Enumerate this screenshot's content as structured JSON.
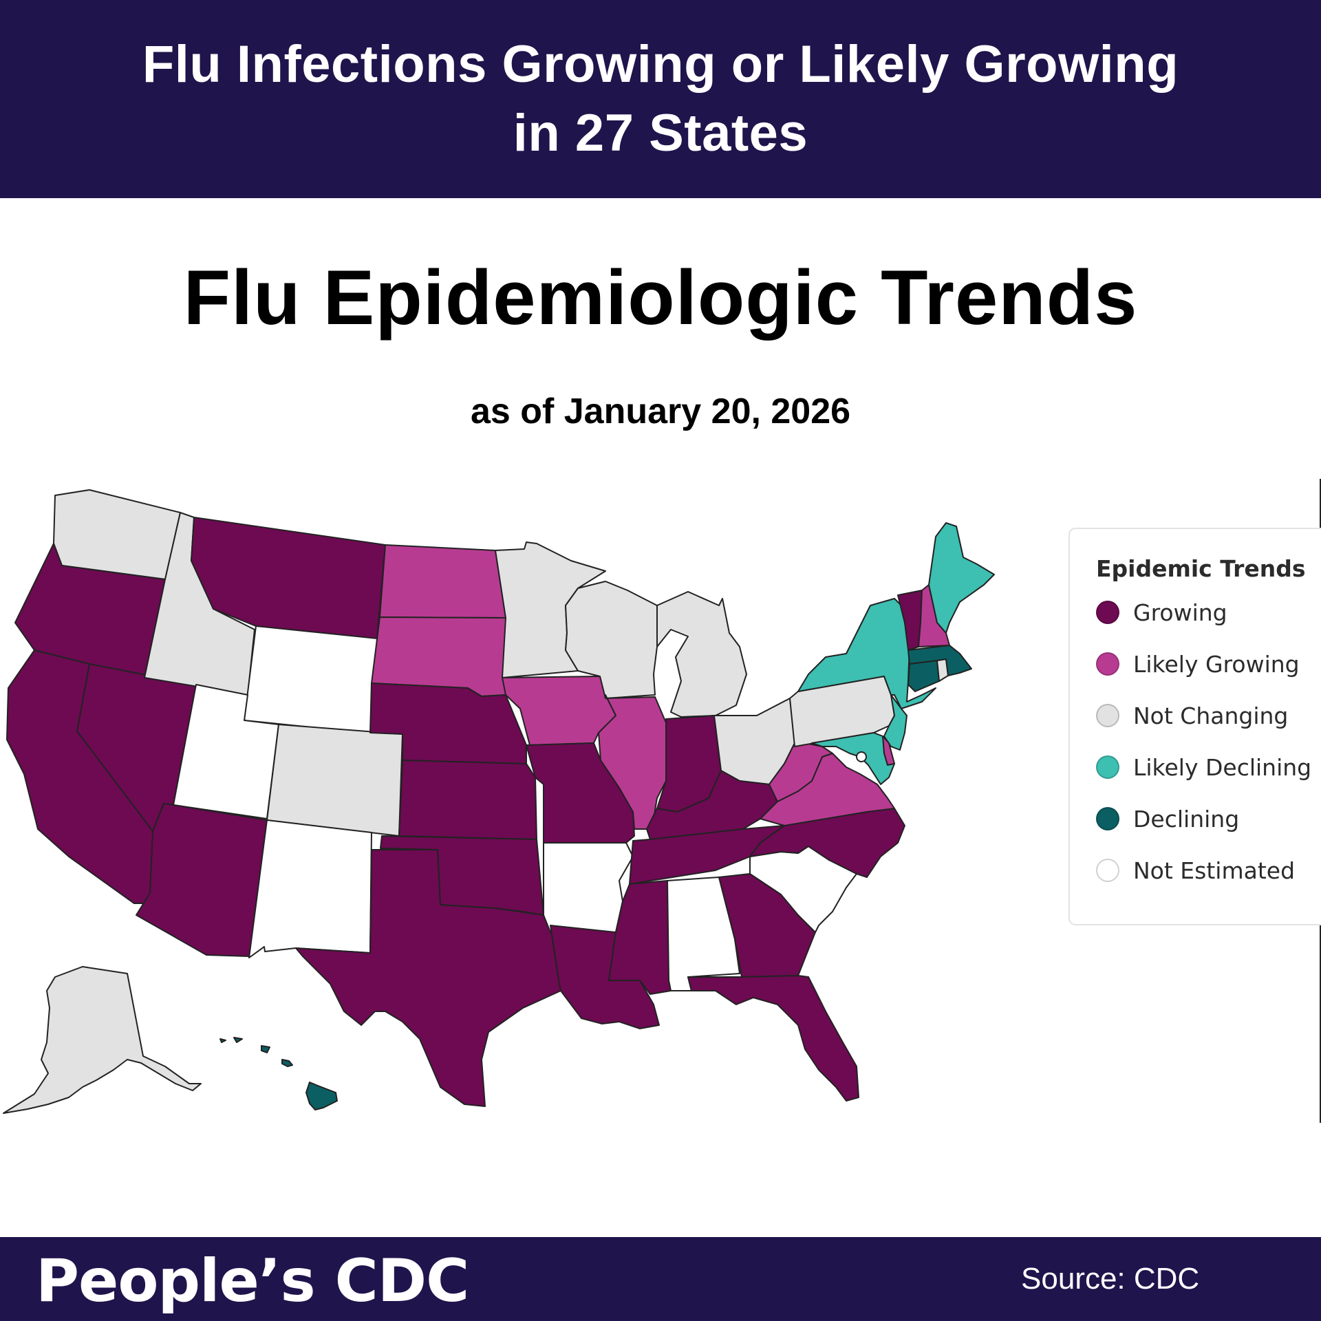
{
  "header": {
    "headline_line1": "Flu Infections Growing or Likely Growing",
    "headline_line2": "in 27 States"
  },
  "title": "Flu Epidemiologic Trends",
  "subtitle": "as of January 20, 2026",
  "legend": {
    "title": "Epidemic Trends",
    "items": [
      {
        "label": "Growing",
        "color": "#6d0a52"
      },
      {
        "label": "Likely Growing",
        "color": "#b83b92"
      },
      {
        "label": "Not Changing",
        "color": "#e2e2e2"
      },
      {
        "label": "Likely Declining",
        "color": "#3dbfb1"
      },
      {
        "label": "Declining",
        "color": "#0b5f62"
      },
      {
        "label": "Not Estimated",
        "color": "#ffffff"
      }
    ]
  },
  "states": [
    {
      "id": "WA",
      "category": "Not Changing"
    },
    {
      "id": "OR",
      "category": "Growing"
    },
    {
      "id": "CA",
      "category": "Growing"
    },
    {
      "id": "NV",
      "category": "Growing"
    },
    {
      "id": "ID",
      "category": "Not Changing"
    },
    {
      "id": "MT",
      "category": "Growing"
    },
    {
      "id": "WY",
      "category": "Not Estimated"
    },
    {
      "id": "UT",
      "category": "Not Estimated"
    },
    {
      "id": "CO",
      "category": "Not Changing"
    },
    {
      "id": "AZ",
      "category": "Growing"
    },
    {
      "id": "NM",
      "category": "Not Estimated"
    },
    {
      "id": "ND",
      "category": "Likely Growing"
    },
    {
      "id": "SD",
      "category": "Likely Growing"
    },
    {
      "id": "NE",
      "category": "Growing"
    },
    {
      "id": "KS",
      "category": "Growing"
    },
    {
      "id": "OK",
      "category": "Growing"
    },
    {
      "id": "TX",
      "category": "Growing"
    },
    {
      "id": "MN",
      "category": "Not Changing"
    },
    {
      "id": "IA",
      "category": "Likely Growing"
    },
    {
      "id": "MO",
      "category": "Growing"
    },
    {
      "id": "AR",
      "category": "Not Estimated"
    },
    {
      "id": "LA",
      "category": "Growing"
    },
    {
      "id": "WI",
      "category": "Not Changing"
    },
    {
      "id": "IL",
      "category": "Likely Growing"
    },
    {
      "id": "MI",
      "category": "Not Changing"
    },
    {
      "id": "IN",
      "category": "Growing"
    },
    {
      "id": "OH",
      "category": "Not Changing"
    },
    {
      "id": "KY",
      "category": "Growing"
    },
    {
      "id": "TN",
      "category": "Growing"
    },
    {
      "id": "MS",
      "category": "Growing"
    },
    {
      "id": "AL",
      "category": "Not Estimated"
    },
    {
      "id": "GA",
      "category": "Growing"
    },
    {
      "id": "FL",
      "category": "Growing"
    },
    {
      "id": "SC",
      "category": "Not Estimated"
    },
    {
      "id": "NC",
      "category": "Growing"
    },
    {
      "id": "VA",
      "category": "Likely Growing"
    },
    {
      "id": "WV",
      "category": "Likely Growing"
    },
    {
      "id": "PA",
      "category": "Not Changing"
    },
    {
      "id": "NY",
      "category": "Likely Declining"
    },
    {
      "id": "NJ",
      "category": "Likely Declining"
    },
    {
      "id": "MD",
      "category": "Likely Declining"
    },
    {
      "id": "DE",
      "category": "Likely Growing"
    },
    {
      "id": "DC",
      "category": "Not Estimated"
    },
    {
      "id": "CT",
      "category": "Declining"
    },
    {
      "id": "RI",
      "category": "Not Changing"
    },
    {
      "id": "MA",
      "category": "Declining"
    },
    {
      "id": "VT",
      "category": "Growing"
    },
    {
      "id": "NH",
      "category": "Likely Growing"
    },
    {
      "id": "ME",
      "category": "Likely Declining"
    },
    {
      "id": "AK",
      "category": "Not Changing"
    },
    {
      "id": "HI",
      "category": "Declining"
    }
  ],
  "footer": {
    "brand": "People’s CDC",
    "source": "Source: CDC"
  }
}
